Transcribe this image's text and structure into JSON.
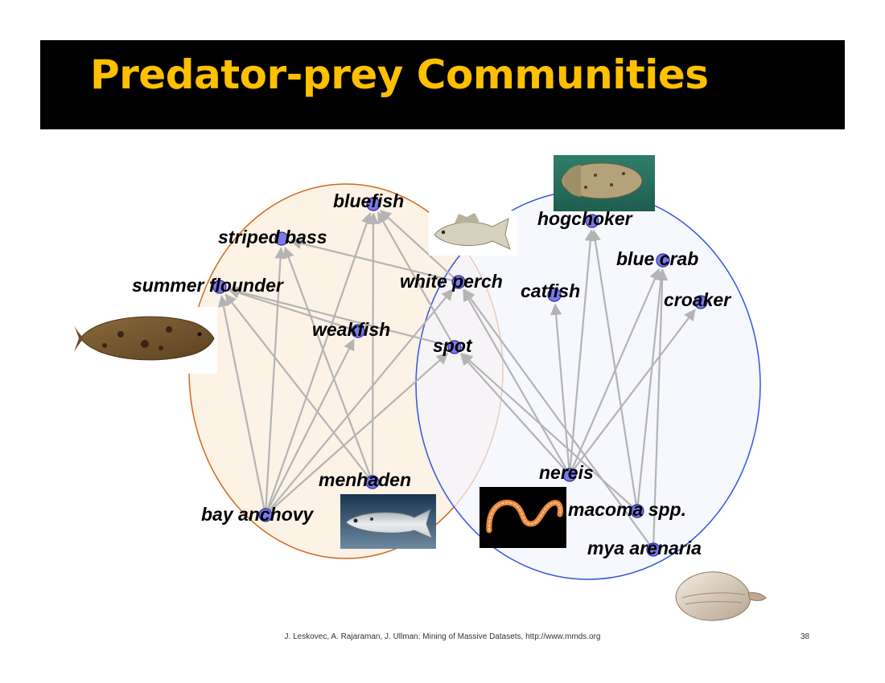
{
  "title": "Predator-prey Communities",
  "footer": "J. Leskovec, A. Rajaraman, J. Ullman: Mining of Massive Datasets, http://www.mmds.org",
  "page_number": "38",
  "colors": {
    "title_text": "#ffc000",
    "title_bg": "#000000",
    "left_community_stroke": "#d2691e",
    "left_community_fill": "#fdf0e2",
    "right_community_stroke": "#3355dd",
    "right_community_fill": "#f3f5fd",
    "node": "#7b7bea",
    "edge": "#b4b4b4"
  },
  "nodes": [
    {
      "id": "bluefish",
      "label": "bluefish"
    },
    {
      "id": "striped-bass",
      "label": "striped bass"
    },
    {
      "id": "summer-flounder",
      "label": "summer flounder"
    },
    {
      "id": "weakfish",
      "label": "weakfish"
    },
    {
      "id": "white-perch",
      "label": "white perch"
    },
    {
      "id": "spot",
      "label": "spot"
    },
    {
      "id": "hogchoker",
      "label": "hogchoker"
    },
    {
      "id": "blue-crab",
      "label": "blue crab"
    },
    {
      "id": "catfish",
      "label": "catfish"
    },
    {
      "id": "croaker",
      "label": "croaker"
    },
    {
      "id": "menhaden",
      "label": "menhaden"
    },
    {
      "id": "bay-anchovy",
      "label": "bay anchovy"
    },
    {
      "id": "nereis",
      "label": "nereis"
    },
    {
      "id": "macoma",
      "label": "macoma spp."
    },
    {
      "id": "mya",
      "label": "mya arenaria"
    }
  ],
  "edges": [
    [
      "bay-anchovy",
      "summer-flounder"
    ],
    [
      "bay-anchovy",
      "striped-bass"
    ],
    [
      "bay-anchovy",
      "bluefish"
    ],
    [
      "bay-anchovy",
      "weakfish"
    ],
    [
      "bay-anchovy",
      "white-perch"
    ],
    [
      "bay-anchovy",
      "spot"
    ],
    [
      "menhaden",
      "bluefish"
    ],
    [
      "menhaden",
      "summer-flounder"
    ],
    [
      "menhaden",
      "striped-bass"
    ],
    [
      "weakfish",
      "summer-flounder"
    ],
    [
      "white-perch",
      "striped-bass"
    ],
    [
      "white-perch",
      "bluefish"
    ],
    [
      "nereis",
      "spot"
    ],
    [
      "nereis",
      "white-perch"
    ],
    [
      "nereis",
      "catfish"
    ],
    [
      "nereis",
      "hogchoker"
    ],
    [
      "nereis",
      "blue-crab"
    ],
    [
      "nereis",
      "croaker"
    ],
    [
      "macoma",
      "spot"
    ],
    [
      "macoma",
      "hogchoker"
    ],
    [
      "macoma",
      "blue-crab"
    ],
    [
      "mya",
      "blue-crab"
    ],
    [
      "mya",
      "white-perch"
    ],
    [
      "spot",
      "bluefish"
    ],
    [
      "spot",
      "summer-flounder"
    ]
  ],
  "images": [
    {
      "name": "summer-flounder-image"
    },
    {
      "name": "hogchoker-image"
    },
    {
      "name": "white-perch-image"
    },
    {
      "name": "menhaden-image"
    },
    {
      "name": "nereis-image"
    },
    {
      "name": "clam-image"
    }
  ]
}
